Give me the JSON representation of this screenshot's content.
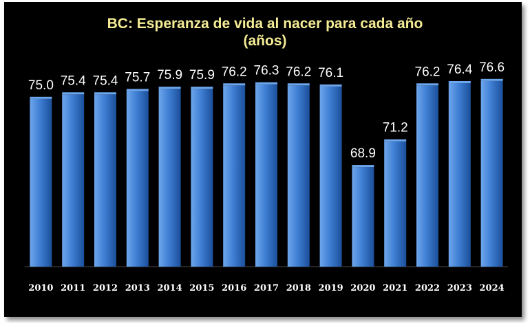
{
  "chart_data": {
    "type": "bar",
    "title": "BC: Esperanza de vida al nacer para cada año",
    "subtitle": "(años)",
    "categories": [
      "2010",
      "2011",
      "2012",
      "2013",
      "2014",
      "2015",
      "2016",
      "2017",
      "2018",
      "2019",
      "2020",
      "2021",
      "2022",
      "2023",
      "2024"
    ],
    "values": [
      75.0,
      75.4,
      75.4,
      75.7,
      75.9,
      75.9,
      76.2,
      76.3,
      76.2,
      76.1,
      68.9,
      71.2,
      76.2,
      76.4,
      76.6
    ],
    "value_labels": [
      "75.0",
      "75.4",
      "75.4",
      "75.7",
      "75.9",
      "75.9",
      "76.2",
      "76.3",
      "76.2",
      "76.1",
      "68.9",
      "71.2",
      "76.2",
      "76.4",
      "76.6"
    ],
    "xlabel": "",
    "ylabel": "",
    "ylim": [
      60,
      78
    ],
    "grid": false,
    "colors": {
      "bar": "#3f7fd4",
      "bar_dark": "#1b4f9a",
      "bar_light": "#6ea6ec",
      "title": "#f5ec95",
      "background": "#000000",
      "text": "#ffffff"
    }
  }
}
